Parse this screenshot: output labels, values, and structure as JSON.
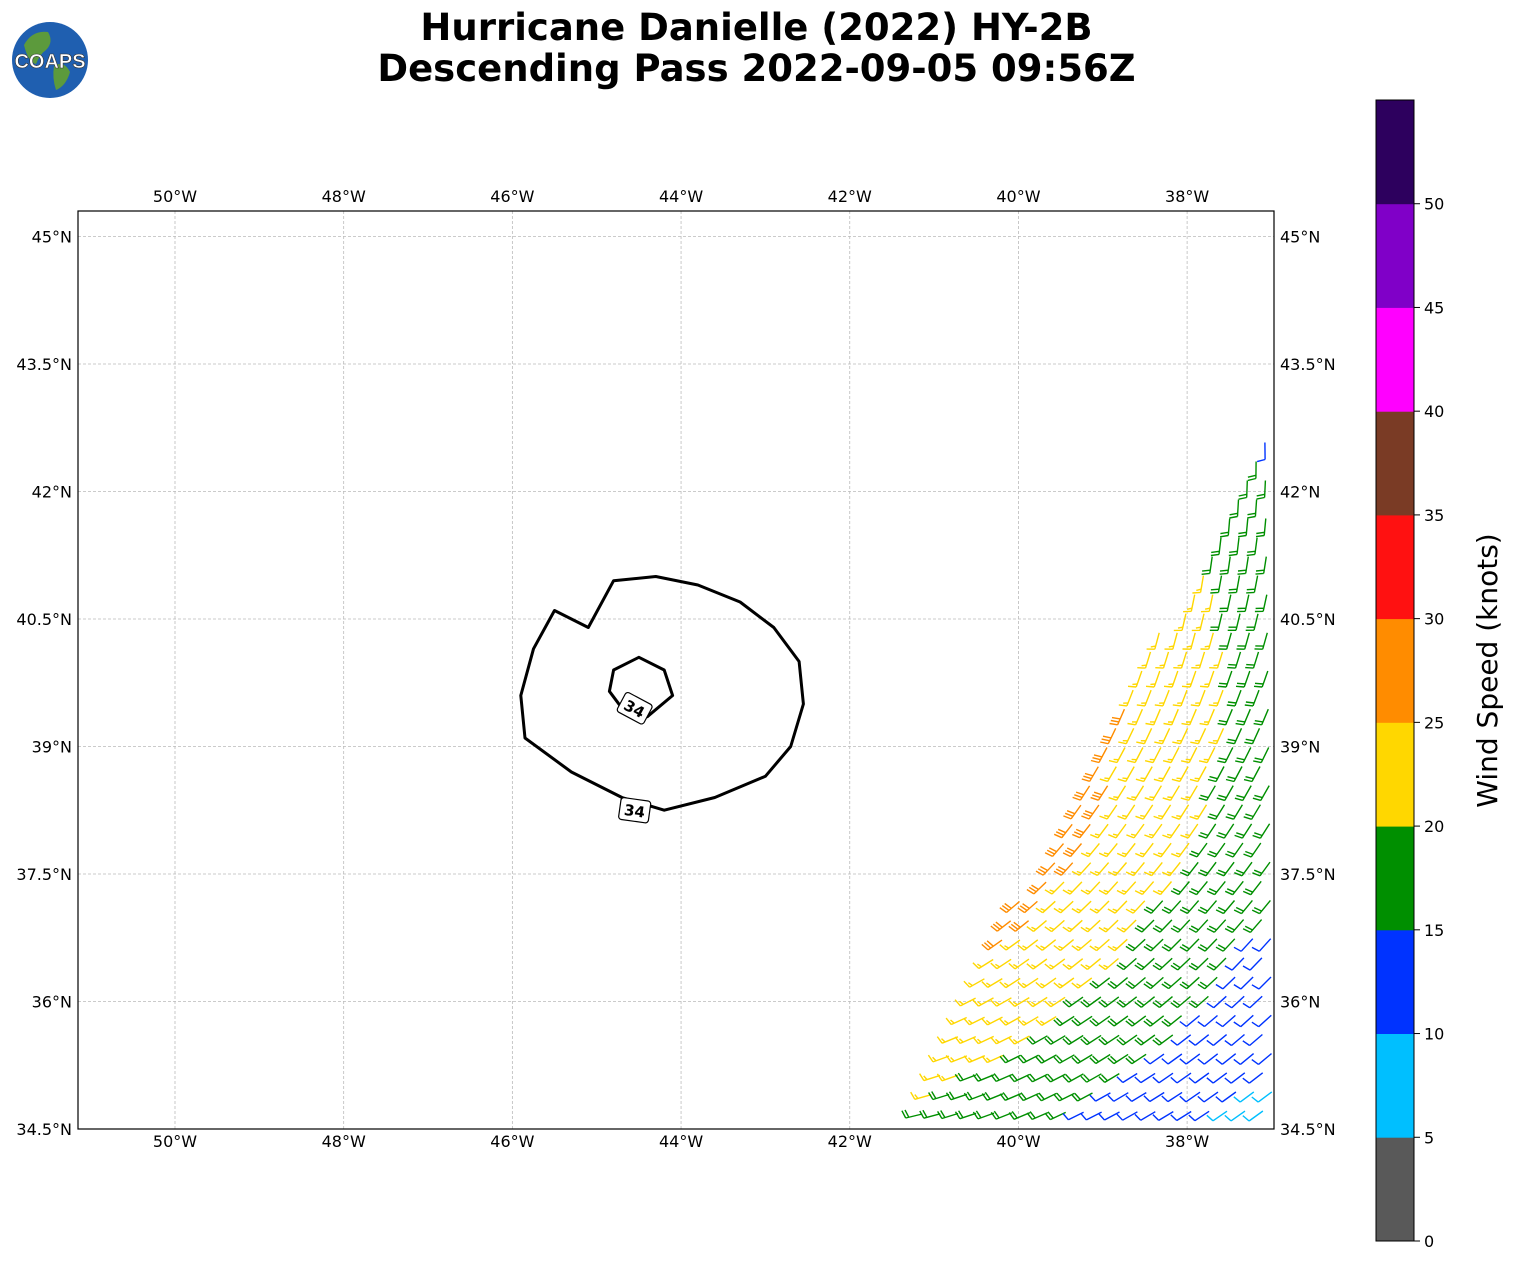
{
  "title": {
    "line1": "Hurricane Danielle (2022) HY-2B",
    "line2": "Descending Pass 2022-09-05 09:56Z"
  },
  "logo": {
    "text": "COAPS",
    "icon": "globe-icon"
  },
  "map": {
    "lon_range": [
      -51.15,
      -36.97
    ],
    "lat_range": [
      34.5,
      45.3
    ],
    "lon_ticks": [
      {
        "value": -50,
        "label": "50°W"
      },
      {
        "value": -48,
        "label": "48°W"
      },
      {
        "value": -46,
        "label": "46°W"
      },
      {
        "value": -44,
        "label": "44°W"
      },
      {
        "value": -42,
        "label": "42°W"
      },
      {
        "value": -40,
        "label": "40°W"
      },
      {
        "value": -38,
        "label": "38°W"
      }
    ],
    "lat_ticks": [
      {
        "value": 45,
        "label": "45°N"
      },
      {
        "value": 43.5,
        "label": "43.5°N"
      },
      {
        "value": 42,
        "label": "42°N"
      },
      {
        "value": 40.5,
        "label": "40.5°N"
      },
      {
        "value": 39,
        "label": "39°N"
      },
      {
        "value": 37.5,
        "label": "37.5°N"
      },
      {
        "value": 36,
        "label": "36°N"
      },
      {
        "value": 34.5,
        "label": "34.5°N"
      }
    ],
    "grid": true,
    "storm_center": {
      "lon": -44.6,
      "lat": 39.7
    },
    "swath_east_edge": [
      [
        -36.97,
        42.8
      ],
      [
        -41.5,
        34.5
      ]
    ],
    "contour": {
      "label": "34",
      "outer_ring": [
        [
          -45.5,
          40.6
        ],
        [
          -45.1,
          40.4
        ],
        [
          -44.8,
          40.95
        ],
        [
          -44.3,
          41.0
        ],
        [
          -43.8,
          40.9
        ],
        [
          -43.3,
          40.7
        ],
        [
          -42.9,
          40.4
        ],
        [
          -42.6,
          40.0
        ],
        [
          -42.55,
          39.5
        ],
        [
          -42.7,
          39.0
        ],
        [
          -43.0,
          38.65
        ],
        [
          -43.6,
          38.4
        ],
        [
          -44.2,
          38.25
        ],
        [
          -44.7,
          38.4
        ],
        [
          -45.3,
          38.7
        ],
        [
          -45.85,
          39.1
        ],
        [
          -45.9,
          39.6
        ],
        [
          -45.75,
          40.15
        ],
        [
          -45.5,
          40.6
        ]
      ],
      "inner_ring": [
        [
          -44.8,
          39.9
        ],
        [
          -44.5,
          40.05
        ],
        [
          -44.2,
          39.9
        ],
        [
          -44.1,
          39.6
        ],
        [
          -44.4,
          39.35
        ],
        [
          -44.7,
          39.45
        ],
        [
          -44.85,
          39.65
        ],
        [
          -44.8,
          39.9
        ]
      ],
      "label_positions": [
        {
          "lon": -44.55,
          "lat": 39.45
        },
        {
          "lon": -44.55,
          "lat": 38.25
        }
      ]
    }
  },
  "colorbar": {
    "label": "Wind Speed (knots)",
    "ticks": [
      "0",
      "5",
      "10",
      "15",
      "20",
      "25",
      "30",
      "35",
      "40",
      "45",
      "50"
    ],
    "colors": [
      "#595959",
      "#00bfff",
      "#0033ff",
      "#008f00",
      "#ffd700",
      "#ff8c00",
      "#ff1111",
      "#7a3b25",
      "#ff00ff",
      "#8000c8",
      "#2d005e"
    ]
  },
  "legend_colors": {
    "gray": "#595959",
    "cyan": "#00bfff",
    "blue": "#0033ff",
    "green": "#008f00",
    "yellow": "#ffd700",
    "orange": "#ff8c00",
    "red": "#ff1111",
    "brown": "#7a3b25",
    "magenta": "#ff00ff",
    "purple": "#8000c8",
    "indigo": "#2d005e"
  }
}
